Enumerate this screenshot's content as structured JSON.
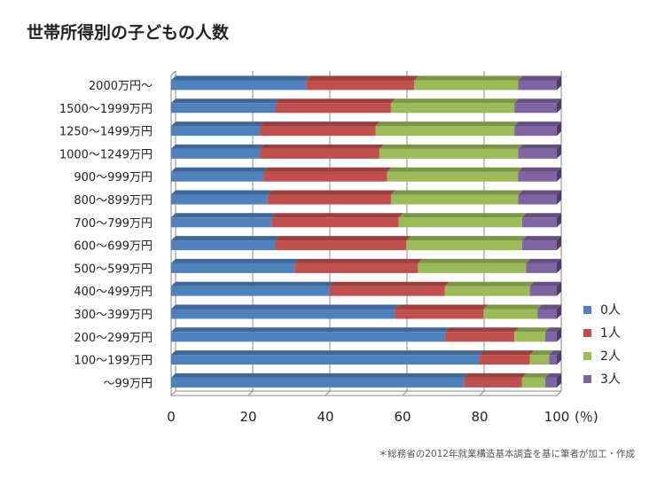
{
  "title": "世帯所得別の子どもの人数",
  "note": "＊総務省の2012年就業構造基本調査を基に筆者が加工・作成",
  "chart_data": {
    "type": "bar",
    "orientation": "horizontal",
    "stacked": true,
    "unit_label": "(％)",
    "xlim": [
      0,
      100
    ],
    "xticks": [
      0,
      20,
      40,
      60,
      80,
      100
    ],
    "grid": true,
    "legend_position": "bottom-right",
    "categories": [
      "2000万円〜",
      "1500〜1999万円",
      "1250〜1499万円",
      "1000〜1249万円",
      "900〜999万円",
      "800〜899万円",
      "700〜799万円",
      "600〜699万円",
      "500〜599万円",
      "400〜499万円",
      "300〜399万円",
      "200〜299万円",
      "100〜199万円",
      "〜99万円"
    ],
    "series": [
      {
        "name": "0人",
        "color": "#4f81bd",
        "values": [
          35,
          27,
          23,
          23,
          24,
          25,
          26,
          27,
          32,
          41,
          58,
          71,
          80,
          76
        ]
      },
      {
        "name": "1人",
        "color": "#c0504d",
        "values": [
          28,
          30,
          30,
          31,
          32,
          32,
          33,
          34,
          32,
          30,
          23,
          18,
          13,
          15
        ]
      },
      {
        "name": "2人",
        "color": "#9bbb59",
        "values": [
          27,
          32,
          36,
          36,
          34,
          33,
          32,
          30,
          28,
          22,
          14,
          8,
          5,
          6
        ]
      },
      {
        "name": "3人",
        "color": "#8064a2",
        "values": [
          10,
          11,
          11,
          10,
          10,
          10,
          9,
          9,
          8,
          7,
          5,
          3,
          2,
          3
        ]
      }
    ]
  }
}
